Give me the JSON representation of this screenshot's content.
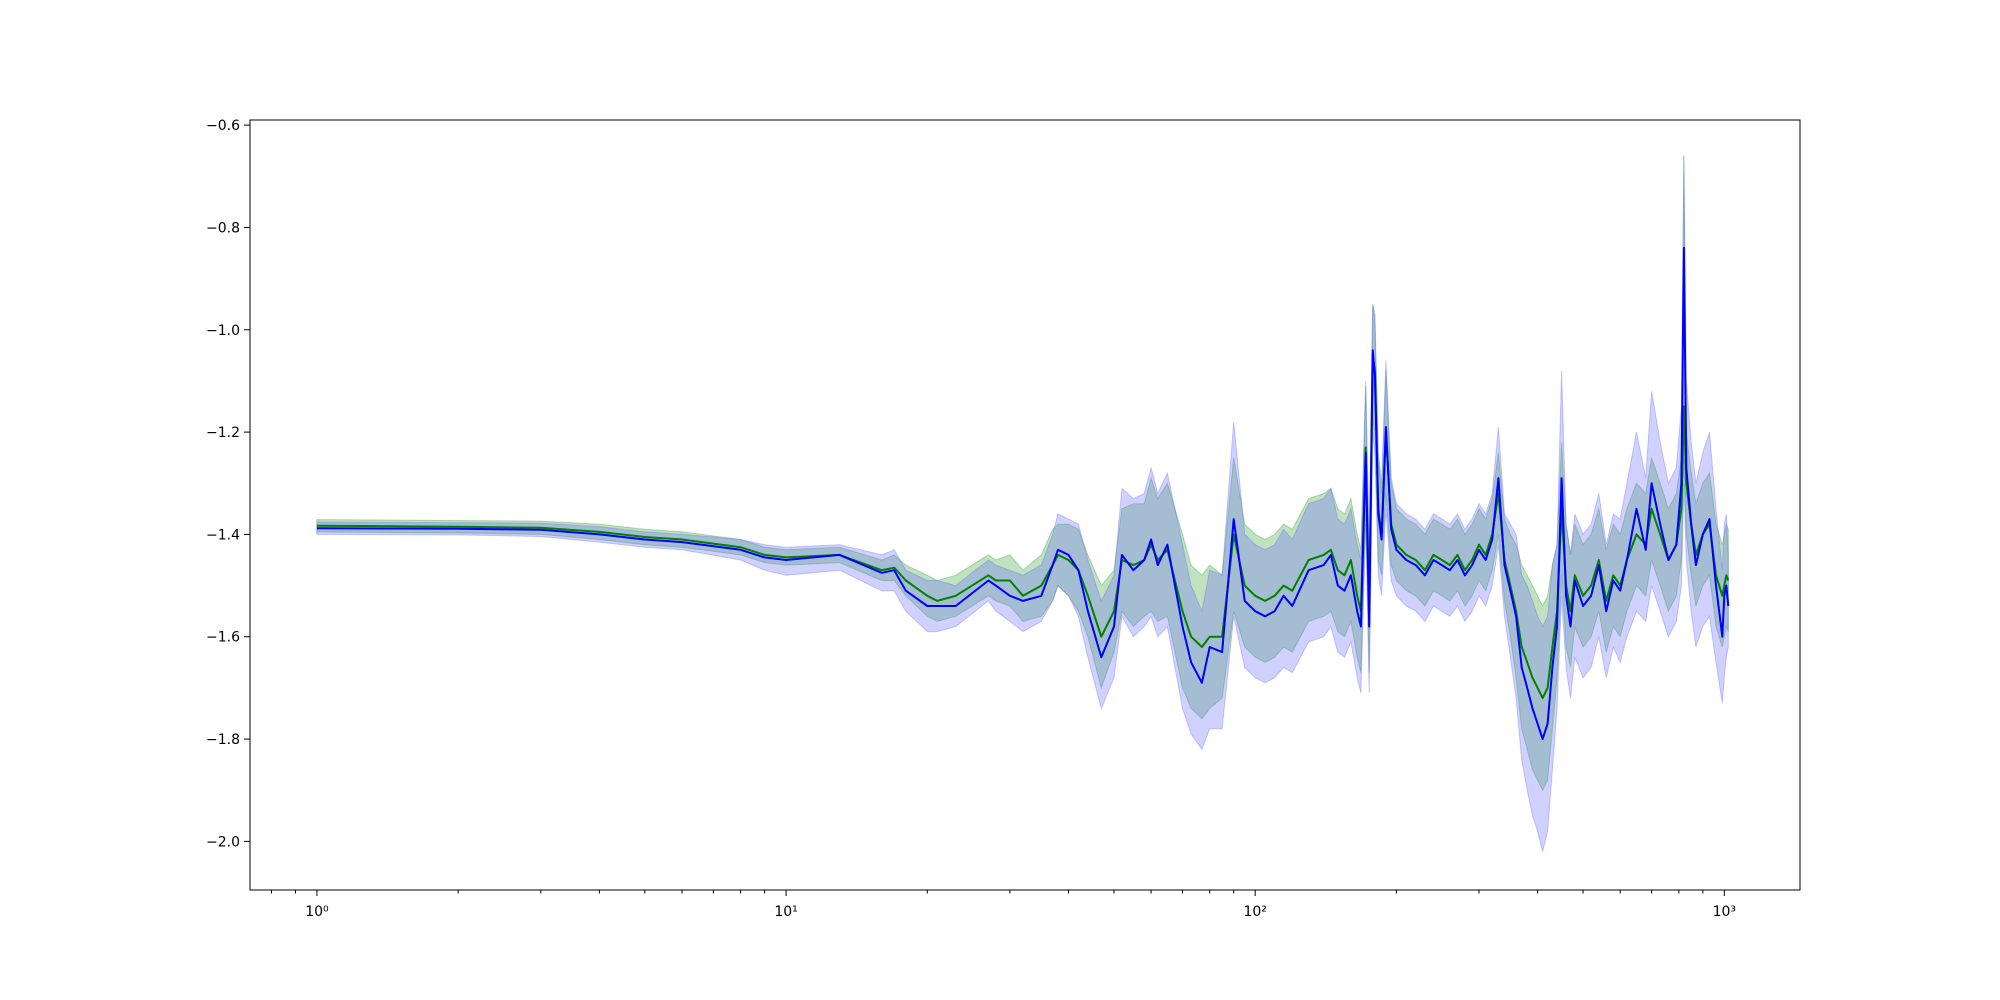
{
  "chart_data": {
    "type": "line",
    "title": "",
    "xlabel": "",
    "ylabel": "",
    "xscale": "log",
    "xlim": [
      0.72,
      1450
    ],
    "ylim": [
      -2.095,
      -0.59
    ],
    "grid": false,
    "legend": "none",
    "x_ticks": [
      {
        "value": 1,
        "label": "10⁰"
      },
      {
        "value": 10,
        "label": "10¹"
      },
      {
        "value": 100,
        "label": "10²"
      },
      {
        "value": 1000,
        "label": "10³"
      }
    ],
    "y_ticks": [
      {
        "value": -0.6,
        "label": "−0.6"
      },
      {
        "value": -0.8,
        "label": "−0.8"
      },
      {
        "value": -1.0,
        "label": "−1.0"
      },
      {
        "value": -1.2,
        "label": "−1.2"
      },
      {
        "value": -1.4,
        "label": "−1.4"
      },
      {
        "value": -1.6,
        "label": "−1.6"
      },
      {
        "value": -1.8,
        "label": "−1.8"
      },
      {
        "value": -2.0,
        "label": "−2.0"
      }
    ],
    "x": [
      1,
      2,
      3,
      4,
      5,
      6,
      8,
      9,
      10,
      13,
      16,
      17,
      18,
      20,
      21,
      23,
      27,
      28,
      30,
      32,
      35,
      37,
      38,
      40,
      42,
      44,
      47,
      50,
      52,
      55,
      58,
      60,
      62,
      65,
      70,
      73,
      77,
      80,
      85,
      90,
      95,
      100,
      105,
      110,
      115,
      120,
      130,
      140,
      145,
      150,
      155,
      160,
      165,
      168,
      172,
      175,
      178,
      180,
      183,
      186,
      190,
      195,
      200,
      210,
      220,
      230,
      240,
      250,
      260,
      270,
      280,
      290,
      300,
      310,
      320,
      330,
      340,
      350,
      360,
      370,
      380,
      390,
      400,
      410,
      420,
      430,
      440,
      450,
      460,
      470,
      480,
      500,
      520,
      540,
      560,
      580,
      600,
      620,
      650,
      680,
      700,
      730,
      760,
      790,
      810,
      820,
      830,
      850,
      870,
      900,
      930,
      960,
      990,
      1000,
      1010,
      1020
    ],
    "series": [
      {
        "color": "#008000",
        "band_color": "#2ca02c",
        "values": [
          -1.383,
          -1.385,
          -1.387,
          -1.395,
          -1.405,
          -1.41,
          -1.425,
          -1.44,
          -1.445,
          -1.44,
          -1.47,
          -1.465,
          -1.49,
          -1.52,
          -1.53,
          -1.52,
          -1.48,
          -1.49,
          -1.49,
          -1.52,
          -1.5,
          -1.46,
          -1.44,
          -1.45,
          -1.47,
          -1.52,
          -1.6,
          -1.55,
          -1.45,
          -1.46,
          -1.45,
          -1.42,
          -1.45,
          -1.43,
          -1.55,
          -1.6,
          -1.62,
          -1.6,
          -1.6,
          -1.4,
          -1.5,
          -1.52,
          -1.53,
          -1.52,
          -1.5,
          -1.51,
          -1.45,
          -1.44,
          -1.43,
          -1.47,
          -1.48,
          -1.45,
          -1.52,
          -1.55,
          -1.23,
          -1.55,
          -1.05,
          -1.08,
          -1.35,
          -1.4,
          -1.2,
          -1.38,
          -1.42,
          -1.44,
          -1.45,
          -1.47,
          -1.44,
          -1.45,
          -1.46,
          -1.44,
          -1.47,
          -1.45,
          -1.42,
          -1.44,
          -1.4,
          -1.32,
          -1.45,
          -1.5,
          -1.55,
          -1.62,
          -1.65,
          -1.68,
          -1.7,
          -1.72,
          -1.7,
          -1.62,
          -1.55,
          -1.35,
          -1.5,
          -1.55,
          -1.48,
          -1.52,
          -1.5,
          -1.45,
          -1.53,
          -1.48,
          -1.5,
          -1.45,
          -1.4,
          -1.42,
          -1.35,
          -1.4,
          -1.45,
          -1.42,
          -1.35,
          -1.15,
          -1.3,
          -1.38,
          -1.44,
          -1.4,
          -1.38,
          -1.48,
          -1.52,
          -1.5,
          -1.48,
          -1.49
        ],
        "lower": [
          -1.395,
          -1.397,
          -1.4,
          -1.41,
          -1.42,
          -1.425,
          -1.44,
          -1.455,
          -1.46,
          -1.455,
          -1.49,
          -1.49,
          -1.52,
          -1.56,
          -1.57,
          -1.56,
          -1.52,
          -1.53,
          -1.54,
          -1.57,
          -1.56,
          -1.53,
          -1.5,
          -1.52,
          -1.55,
          -1.6,
          -1.7,
          -1.63,
          -1.55,
          -1.58,
          -1.56,
          -1.55,
          -1.57,
          -1.56,
          -1.7,
          -1.74,
          -1.76,
          -1.74,
          -1.72,
          -1.55,
          -1.62,
          -1.64,
          -1.65,
          -1.64,
          -1.62,
          -1.63,
          -1.57,
          -1.56,
          -1.55,
          -1.59,
          -1.6,
          -1.57,
          -1.64,
          -1.67,
          -1.35,
          -1.67,
          -1.17,
          -1.2,
          -1.45,
          -1.48,
          -1.32,
          -1.46,
          -1.49,
          -1.51,
          -1.52,
          -1.54,
          -1.51,
          -1.52,
          -1.53,
          -1.51,
          -1.54,
          -1.52,
          -1.49,
          -1.51,
          -1.47,
          -1.4,
          -1.53,
          -1.6,
          -1.68,
          -1.78,
          -1.82,
          -1.86,
          -1.88,
          -1.9,
          -1.88,
          -1.78,
          -1.68,
          -1.48,
          -1.62,
          -1.66,
          -1.58,
          -1.62,
          -1.6,
          -1.55,
          -1.63,
          -1.58,
          -1.6,
          -1.55,
          -1.5,
          -1.52,
          -1.45,
          -1.5,
          -1.55,
          -1.52,
          -1.45,
          -1.25,
          -1.4,
          -1.48,
          -1.54,
          -1.5,
          -1.48,
          -1.58,
          -1.62,
          -1.6,
          -1.58,
          -1.59
        ],
        "upper": [
          -1.371,
          -1.373,
          -1.374,
          -1.38,
          -1.39,
          -1.395,
          -1.41,
          -1.425,
          -1.43,
          -1.425,
          -1.45,
          -1.44,
          -1.46,
          -1.48,
          -1.49,
          -1.48,
          -1.44,
          -1.45,
          -1.44,
          -1.47,
          -1.44,
          -1.39,
          -1.38,
          -1.38,
          -1.39,
          -1.44,
          -1.5,
          -1.47,
          -1.35,
          -1.34,
          -1.34,
          -1.29,
          -1.33,
          -1.3,
          -1.4,
          -1.46,
          -1.48,
          -1.46,
          -1.48,
          -1.25,
          -1.38,
          -1.4,
          -1.41,
          -1.4,
          -1.38,
          -1.39,
          -1.33,
          -1.32,
          -1.31,
          -1.35,
          -1.36,
          -1.33,
          -1.4,
          -1.43,
          -1.11,
          -1.43,
          -0.95,
          -0.98,
          -1.25,
          -1.32,
          -1.08,
          -1.3,
          -1.35,
          -1.37,
          -1.38,
          -1.4,
          -1.37,
          -1.38,
          -1.39,
          -1.37,
          -1.4,
          -1.38,
          -1.35,
          -1.37,
          -1.33,
          -1.24,
          -1.37,
          -1.4,
          -1.42,
          -1.46,
          -1.48,
          -1.5,
          -1.52,
          -1.54,
          -1.52,
          -1.46,
          -1.42,
          -1.22,
          -1.38,
          -1.44,
          -1.38,
          -1.42,
          -1.4,
          -1.35,
          -1.43,
          -1.38,
          -1.4,
          -1.35,
          -1.3,
          -1.32,
          -1.25,
          -1.3,
          -1.35,
          -1.32,
          -1.25,
          -0.66,
          -1.2,
          -1.28,
          -1.34,
          -1.3,
          -1.28,
          -1.38,
          -1.42,
          -1.4,
          -1.38,
          -1.39
        ]
      },
      {
        "color": "#0000ff",
        "band_color": "#6666ff",
        "values": [
          -1.388,
          -1.389,
          -1.391,
          -1.4,
          -1.41,
          -1.415,
          -1.43,
          -1.445,
          -1.45,
          -1.44,
          -1.475,
          -1.47,
          -1.51,
          -1.54,
          -1.54,
          -1.54,
          -1.49,
          -1.5,
          -1.52,
          -1.53,
          -1.52,
          -1.46,
          -1.43,
          -1.44,
          -1.47,
          -1.55,
          -1.64,
          -1.58,
          -1.44,
          -1.47,
          -1.45,
          -1.41,
          -1.46,
          -1.42,
          -1.58,
          -1.65,
          -1.69,
          -1.62,
          -1.63,
          -1.37,
          -1.53,
          -1.55,
          -1.56,
          -1.55,
          -1.52,
          -1.54,
          -1.47,
          -1.46,
          -1.44,
          -1.5,
          -1.51,
          -1.48,
          -1.55,
          -1.58,
          -1.24,
          -1.58,
          -1.04,
          -1.09,
          -1.36,
          -1.41,
          -1.19,
          -1.39,
          -1.43,
          -1.45,
          -1.46,
          -1.48,
          -1.45,
          -1.46,
          -1.47,
          -1.45,
          -1.48,
          -1.46,
          -1.43,
          -1.45,
          -1.41,
          -1.29,
          -1.46,
          -1.51,
          -1.56,
          -1.66,
          -1.7,
          -1.74,
          -1.77,
          -1.8,
          -1.77,
          -1.66,
          -1.58,
          -1.29,
          -1.52,
          -1.58,
          -1.49,
          -1.54,
          -1.52,
          -1.46,
          -1.55,
          -1.49,
          -1.51,
          -1.45,
          -1.35,
          -1.43,
          -1.3,
          -1.38,
          -1.45,
          -1.42,
          -1.3,
          -0.84,
          -1.27,
          -1.38,
          -1.46,
          -1.4,
          -1.37,
          -1.5,
          -1.6,
          -1.52,
          -1.5,
          -1.54
        ],
        "lower": [
          -1.4,
          -1.401,
          -1.404,
          -1.415,
          -1.425,
          -1.43,
          -1.45,
          -1.47,
          -1.48,
          -1.47,
          -1.51,
          -1.51,
          -1.55,
          -1.59,
          -1.59,
          -1.58,
          -1.53,
          -1.55,
          -1.57,
          -1.59,
          -1.57,
          -1.53,
          -1.5,
          -1.52,
          -1.56,
          -1.64,
          -1.74,
          -1.68,
          -1.56,
          -1.6,
          -1.58,
          -1.56,
          -1.6,
          -1.58,
          -1.74,
          -1.79,
          -1.82,
          -1.78,
          -1.78,
          -1.56,
          -1.66,
          -1.68,
          -1.69,
          -1.68,
          -1.66,
          -1.67,
          -1.61,
          -1.6,
          -1.58,
          -1.63,
          -1.64,
          -1.61,
          -1.68,
          -1.71,
          -1.38,
          -1.71,
          -1.2,
          -1.24,
          -1.48,
          -1.52,
          -1.35,
          -1.49,
          -1.52,
          -1.54,
          -1.55,
          -1.57,
          -1.54,
          -1.55,
          -1.56,
          -1.54,
          -1.57,
          -1.55,
          -1.52,
          -1.54,
          -1.5,
          -1.42,
          -1.56,
          -1.64,
          -1.72,
          -1.84,
          -1.9,
          -1.95,
          -1.98,
          -2.02,
          -1.98,
          -1.86,
          -1.74,
          -1.52,
          -1.66,
          -1.72,
          -1.64,
          -1.68,
          -1.66,
          -1.6,
          -1.68,
          -1.62,
          -1.65,
          -1.6,
          -1.55,
          -1.57,
          -1.5,
          -1.55,
          -1.6,
          -1.57,
          -1.5,
          -1.3,
          -1.45,
          -1.55,
          -1.62,
          -1.58,
          -1.56,
          -1.65,
          -1.73,
          -1.68,
          -1.64,
          -1.62
        ],
        "upper": [
          -1.376,
          -1.377,
          -1.378,
          -1.385,
          -1.395,
          -1.4,
          -1.41,
          -1.42,
          -1.425,
          -1.42,
          -1.44,
          -1.43,
          -1.47,
          -1.49,
          -1.49,
          -1.5,
          -1.45,
          -1.46,
          -1.47,
          -1.48,
          -1.46,
          -1.4,
          -1.36,
          -1.37,
          -1.38,
          -1.45,
          -1.53,
          -1.48,
          -1.31,
          -1.33,
          -1.32,
          -1.27,
          -1.32,
          -1.28,
          -1.42,
          -1.5,
          -1.55,
          -1.47,
          -1.48,
          -1.18,
          -1.4,
          -1.42,
          -1.43,
          -1.42,
          -1.39,
          -1.41,
          -1.34,
          -1.33,
          -1.31,
          -1.37,
          -1.38,
          -1.35,
          -1.42,
          -1.45,
          -1.1,
          -1.45,
          -0.95,
          -0.97,
          -1.24,
          -1.3,
          -1.06,
          -1.29,
          -1.34,
          -1.36,
          -1.37,
          -1.39,
          -1.36,
          -1.37,
          -1.38,
          -1.36,
          -1.39,
          -1.37,
          -1.34,
          -1.36,
          -1.32,
          -1.19,
          -1.36,
          -1.38,
          -1.4,
          -1.48,
          -1.5,
          -1.53,
          -1.56,
          -1.58,
          -1.56,
          -1.46,
          -1.42,
          -1.08,
          -1.38,
          -1.44,
          -1.36,
          -1.4,
          -1.38,
          -1.32,
          -1.42,
          -1.36,
          -1.37,
          -1.3,
          -1.2,
          -1.29,
          -1.12,
          -1.22,
          -1.3,
          -1.27,
          -1.15,
          -0.66,
          -1.1,
          -1.22,
          -1.3,
          -1.24,
          -1.2,
          -1.35,
          -1.47,
          -1.38,
          -1.36,
          -1.44
        ]
      }
    ]
  }
}
